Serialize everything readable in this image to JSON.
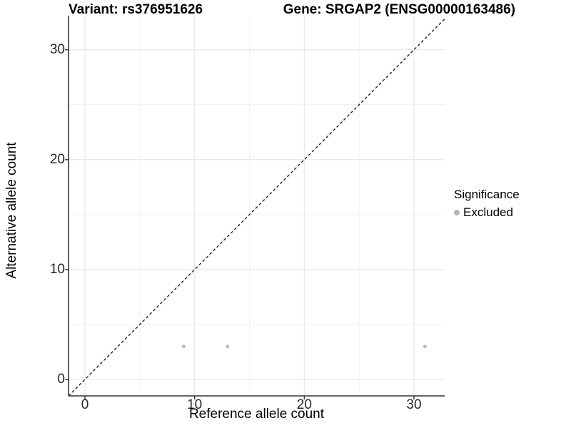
{
  "chart_data": {
    "type": "scatter",
    "title_left": "Variant: rs376951626",
    "title_right": "Gene: SRGAP2 (ENSG00000163486)",
    "xlabel": "Reference allele count",
    "ylabel": "Alternative allele count",
    "xlim": [
      -1.5,
      32.8
    ],
    "ylim": [
      -1.5,
      33.1
    ],
    "x_ticks": [
      0,
      10,
      20,
      30
    ],
    "y_ticks": [
      0,
      10,
      20,
      30
    ],
    "x_minor_ticks": [
      5,
      15,
      25
    ],
    "y_minor_ticks": [
      5,
      15,
      25
    ],
    "grid": true,
    "legend": {
      "title": "Significance",
      "position": "right",
      "items": [
        {
          "label": "Excluded",
          "marker": "circle",
          "color": "#b5b5b5"
        }
      ]
    },
    "series": [
      {
        "name": "Excluded",
        "color": "#bdbdbd",
        "points": [
          {
            "x": 9,
            "y": 3
          },
          {
            "x": 13,
            "y": 3
          },
          {
            "x": 31,
            "y": 3
          }
        ]
      }
    ],
    "reference_line": {
      "kind": "identity",
      "equation": "y = x",
      "style": "dashed",
      "color": "#222222"
    }
  },
  "colors": {
    "background": "#ffffff",
    "axis_line": "#333333",
    "grid_major": "#e4e4e4",
    "grid_minor": "#f1f1f1",
    "tick_label": "#262626",
    "point": "#bdbdbd"
  }
}
